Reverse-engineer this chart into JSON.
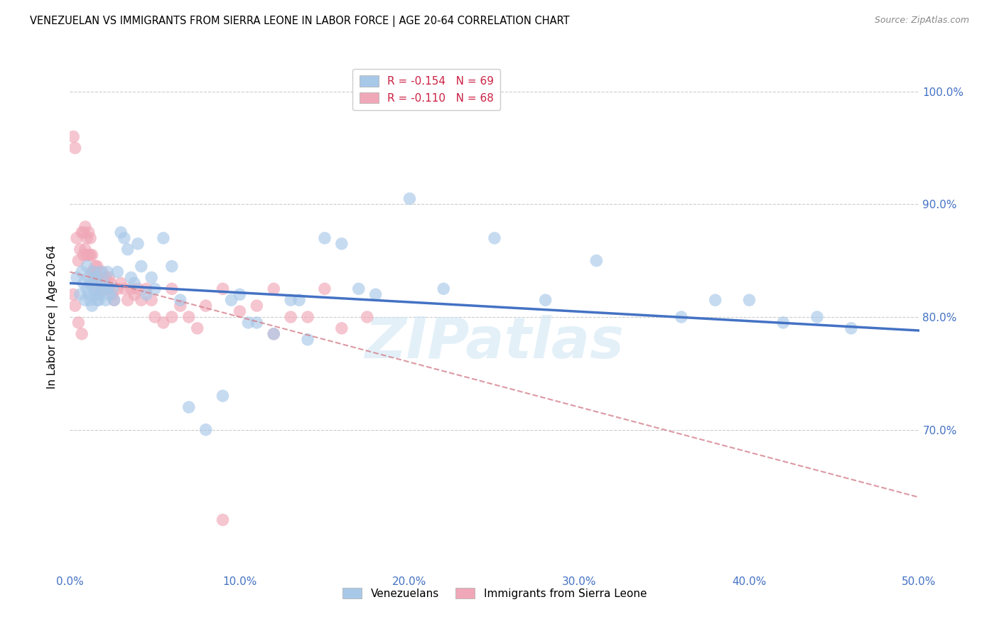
{
  "title": "VENEZUELAN VS IMMIGRANTS FROM SIERRA LEONE IN LABOR FORCE | AGE 20-64 CORRELATION CHART",
  "source": "Source: ZipAtlas.com",
  "ylabel": "In Labor Force | Age 20-64",
  "xlim": [
    0.0,
    0.5
  ],
  "ylim": [
    0.575,
    1.025
  ],
  "xticks": [
    0.0,
    0.1,
    0.2,
    0.3,
    0.4,
    0.5
  ],
  "yticks": [
    0.7,
    0.8,
    0.9,
    1.0
  ],
  "xticklabels": [
    "0.0%",
    "10.0%",
    "20.0%",
    "30.0%",
    "40.0%",
    "50.0%"
  ],
  "yticklabels": [
    "70.0%",
    "80.0%",
    "90.0%",
    "100.0%"
  ],
  "blue_color": "#a8c8e8",
  "pink_color": "#f0a8b8",
  "blue_line_color": "#4472c4",
  "pink_line_color": "#d4808c",
  "legend_blue_label": "R = -0.154   N = 69",
  "legend_pink_label": "R = -0.110   N = 68",
  "legend_bottom_blue": "Venezuelans",
  "legend_bottom_pink": "Immigrants from Sierra Leone",
  "watermark": "ZIPatlas",
  "venezuelans_x": [
    0.004,
    0.006,
    0.007,
    0.008,
    0.009,
    0.01,
    0.01,
    0.011,
    0.011,
    0.012,
    0.012,
    0.013,
    0.014,
    0.014,
    0.015,
    0.015,
    0.016,
    0.016,
    0.017,
    0.017,
    0.018,
    0.019,
    0.02,
    0.021,
    0.022,
    0.022,
    0.023,
    0.025,
    0.026,
    0.028,
    0.03,
    0.032,
    0.034,
    0.036,
    0.038,
    0.04,
    0.042,
    0.045,
    0.048,
    0.05,
    0.055,
    0.06,
    0.065,
    0.07,
    0.08,
    0.09,
    0.1,
    0.11,
    0.12,
    0.13,
    0.15,
    0.17,
    0.2,
    0.22,
    0.25,
    0.28,
    0.31,
    0.36,
    0.38,
    0.4,
    0.42,
    0.44,
    0.46,
    0.135,
    0.16,
    0.18,
    0.095,
    0.105,
    0.14
  ],
  "venezuelans_y": [
    0.835,
    0.82,
    0.84,
    0.83,
    0.815,
    0.825,
    0.845,
    0.82,
    0.835,
    0.815,
    0.83,
    0.81,
    0.825,
    0.84,
    0.82,
    0.835,
    0.815,
    0.83,
    0.82,
    0.815,
    0.84,
    0.825,
    0.83,
    0.815,
    0.825,
    0.84,
    0.82,
    0.825,
    0.815,
    0.84,
    0.875,
    0.87,
    0.86,
    0.835,
    0.83,
    0.865,
    0.845,
    0.82,
    0.835,
    0.825,
    0.87,
    0.845,
    0.815,
    0.72,
    0.7,
    0.73,
    0.82,
    0.795,
    0.785,
    0.815,
    0.87,
    0.825,
    0.905,
    0.825,
    0.87,
    0.815,
    0.85,
    0.8,
    0.815,
    0.815,
    0.795,
    0.8,
    0.79,
    0.815,
    0.865,
    0.82,
    0.815,
    0.795,
    0.78
  ],
  "sierra_leone_x": [
    0.002,
    0.003,
    0.004,
    0.005,
    0.006,
    0.007,
    0.008,
    0.008,
    0.009,
    0.009,
    0.01,
    0.01,
    0.011,
    0.011,
    0.012,
    0.012,
    0.013,
    0.013,
    0.014,
    0.014,
    0.015,
    0.015,
    0.016,
    0.016,
    0.017,
    0.017,
    0.018,
    0.019,
    0.02,
    0.021,
    0.022,
    0.023,
    0.024,
    0.025,
    0.026,
    0.028,
    0.03,
    0.032,
    0.034,
    0.036,
    0.038,
    0.04,
    0.042,
    0.045,
    0.048,
    0.05,
    0.055,
    0.06,
    0.065,
    0.07,
    0.08,
    0.09,
    0.1,
    0.11,
    0.12,
    0.13,
    0.14,
    0.15,
    0.16,
    0.175,
    0.002,
    0.003,
    0.005,
    0.007,
    0.12,
    0.06,
    0.075,
    0.09
  ],
  "sierra_leone_y": [
    0.96,
    0.95,
    0.87,
    0.85,
    0.86,
    0.875,
    0.855,
    0.875,
    0.86,
    0.88,
    0.855,
    0.87,
    0.855,
    0.875,
    0.855,
    0.87,
    0.855,
    0.84,
    0.84,
    0.83,
    0.835,
    0.845,
    0.845,
    0.835,
    0.835,
    0.82,
    0.825,
    0.84,
    0.825,
    0.835,
    0.825,
    0.835,
    0.83,
    0.82,
    0.815,
    0.825,
    0.83,
    0.825,
    0.815,
    0.825,
    0.82,
    0.825,
    0.815,
    0.825,
    0.815,
    0.8,
    0.795,
    0.825,
    0.81,
    0.8,
    0.81,
    0.825,
    0.805,
    0.81,
    0.825,
    0.8,
    0.8,
    0.825,
    0.79,
    0.8,
    0.82,
    0.81,
    0.795,
    0.785,
    0.785,
    0.8,
    0.79,
    0.62
  ],
  "blue_trend_x": [
    0.0,
    0.5
  ],
  "blue_trend_y": [
    0.83,
    0.788
  ],
  "pink_trend_x": [
    0.0,
    0.5
  ],
  "pink_trend_y": [
    0.84,
    0.64
  ]
}
